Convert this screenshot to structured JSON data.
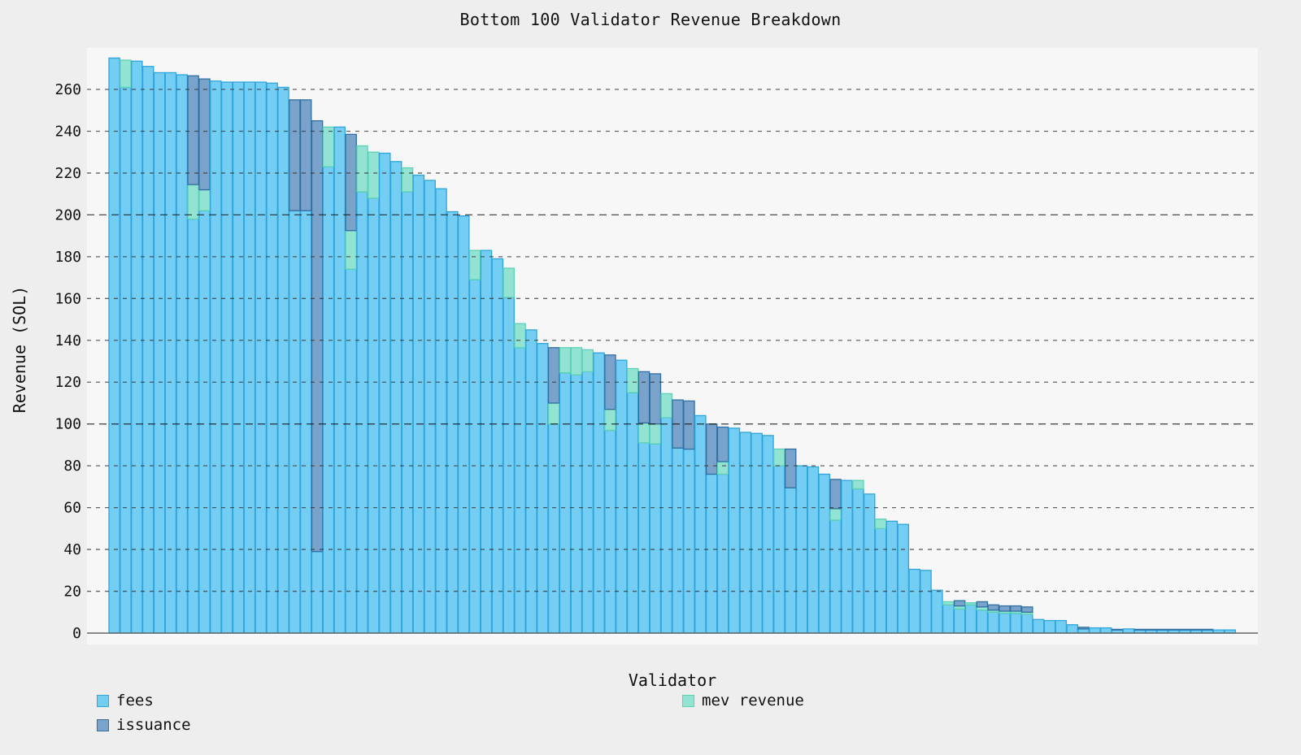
{
  "chart_data": {
    "type": "bar",
    "stacked": true,
    "title": "Bottom 100 Validator Revenue Breakdown",
    "xlabel": "Validator",
    "ylabel": "Revenue (SOL)",
    "ylim": [
      0,
      279
    ],
    "yticks": [
      0,
      20,
      40,
      60,
      80,
      100,
      120,
      140,
      160,
      180,
      200,
      220,
      240,
      260
    ],
    "grid": true,
    "legend_position": "bottom",
    "series": [
      {
        "name": "fees",
        "color": "#74cdf2",
        "edge": "#2ea6dd",
        "values": [
          275,
          261,
          273.5,
          271,
          268,
          268,
          267,
          198,
          202,
          264,
          263.5,
          263.5,
          263.5,
          263.5,
          263,
          261,
          202,
          202,
          39,
          223,
          242,
          174,
          211,
          208,
          229.5,
          225.5,
          211,
          219,
          216.5,
          212.5,
          201.5,
          199.5,
          169,
          183,
          179,
          160.5,
          136.5,
          145,
          138.5,
          100,
          124.5,
          123.5,
          125,
          134,
          97,
          130.5,
          115,
          91,
          90.5,
          103,
          88.5,
          88,
          104,
          76,
          76,
          98,
          96,
          95.5,
          94.5,
          80,
          69.5,
          80,
          79.5,
          76,
          54,
          73,
          69,
          66.5,
          50,
          53.5,
          52,
          30.5,
          30,
          20.5,
          13.5,
          11.5,
          13.5,
          11,
          10,
          9.5,
          9.5,
          9,
          6.5,
          6,
          6,
          4,
          2,
          2.5,
          2.5,
          1.5,
          2,
          1.5,
          1.5,
          1.5,
          1.5,
          1.5,
          1.5,
          1.5,
          1.5,
          1.5
        ]
      },
      {
        "name": "mev revenue",
        "color": "#93e3d2",
        "edge": "#5bd1b6",
        "values": [
          0,
          13,
          0,
          0,
          0,
          0,
          0,
          16.5,
          10,
          0,
          0,
          0,
          0,
          0,
          0,
          0,
          0,
          0,
          0,
          19,
          0,
          18.5,
          22,
          22,
          0,
          0,
          11.5,
          0,
          0,
          0,
          0,
          0,
          14,
          0,
          0,
          14,
          11.5,
          0,
          0,
          10,
          12,
          13,
          10.5,
          0,
          10,
          0,
          11.5,
          9.5,
          9.5,
          11.5,
          0,
          0,
          0,
          0,
          6,
          0,
          0,
          0,
          0,
          8,
          0,
          0,
          0,
          0,
          5.5,
          0,
          4,
          0,
          4.5,
          0,
          0,
          0,
          0,
          0,
          1.5,
          1.5,
          1,
          1.5,
          1,
          1,
          1,
          1,
          0,
          0,
          0,
          0,
          0,
          0,
          0,
          0,
          0,
          0,
          0,
          0,
          0,
          0,
          0,
          0,
          0,
          0
        ]
      },
      {
        "name": "issuance",
        "color": "#7aa3cc",
        "edge": "#2f6fa3",
        "values": [
          0,
          0,
          0,
          0,
          0,
          0,
          0,
          52,
          53,
          0,
          0,
          0,
          0,
          0,
          0,
          0,
          53,
          53,
          206,
          0,
          0,
          46,
          0,
          0,
          0,
          0,
          0,
          0,
          0,
          0,
          0,
          0,
          0,
          0,
          0,
          0,
          0,
          0,
          0,
          26.5,
          0,
          0,
          0,
          0,
          26,
          0,
          0,
          24.5,
          24,
          0,
          23,
          23,
          0,
          24,
          16.5,
          0,
          0,
          0,
          0,
          0,
          18.5,
          0,
          0,
          0,
          14,
          0,
          0,
          0,
          0,
          0,
          0,
          0,
          0,
          0,
          0,
          2.5,
          0,
          2.5,
          2.5,
          2.5,
          2.5,
          2.5,
          0,
          0,
          0,
          0,
          0.8,
          0,
          0,
          0.3,
          0,
          0.3,
          0.3,
          0.3,
          0.3,
          0.3,
          0.3,
          0.3,
          0,
          0
        ]
      }
    ],
    "categories_count": 100
  },
  "legend": {
    "fees": "fees",
    "issuance": "issuance",
    "mev": "mev revenue"
  }
}
